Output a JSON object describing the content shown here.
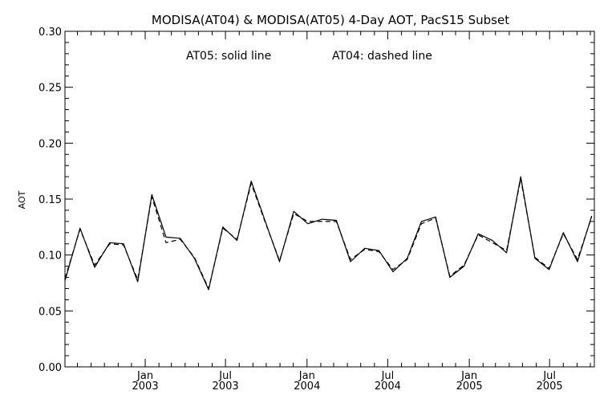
{
  "chart_data": {
    "type": "line",
    "title": "MODISA(AT04) & MODISA(AT05) 4-Day AOT, PacS15 Subset",
    "annotation": {
      "solid": "AT05: solid line",
      "dashed": "AT04: dashed line"
    },
    "xlabel": "",
    "ylabel": "AOT",
    "ylim": [
      0.0,
      0.3
    ],
    "yticks": [
      "0.00",
      "0.05",
      "0.10",
      "0.15",
      "0.20",
      "0.25",
      "0.30"
    ],
    "xlim": [
      "2002-07-04",
      "2005-10-10"
    ],
    "xticks": [
      {
        "date": "2003-01-01",
        "month": "Jan",
        "year": "2003"
      },
      {
        "date": "2003-07-01",
        "month": "Jul",
        "year": "2003"
      },
      {
        "date": "2004-01-01",
        "month": "Jan",
        "year": "2004"
      },
      {
        "date": "2004-07-01",
        "month": "Jul",
        "year": "2004"
      },
      {
        "date": "2005-01-01",
        "month": "Jan",
        "year": "2005"
      },
      {
        "date": "2005-07-01",
        "month": "Jul",
        "year": "2005"
      }
    ],
    "grid": false,
    "series": [
      {
        "name": "AT05",
        "style": "solid",
        "color": "#000000",
        "x": [
          "2002-07-04",
          "2002-08-07",
          "2002-09-09",
          "2002-10-13",
          "2002-11-13",
          "2002-12-15",
          "2003-01-16",
          "2003-02-17",
          "2003-03-21",
          "2003-04-22",
          "2003-05-24",
          "2003-06-25",
          "2003-07-27",
          "2003-08-28",
          "2003-09-29",
          "2003-10-31",
          "2003-12-02",
          "2004-01-03",
          "2004-02-04",
          "2004-03-07",
          "2004-04-08",
          "2004-05-10",
          "2004-06-11",
          "2004-07-13",
          "2004-08-14",
          "2004-09-15",
          "2004-10-17",
          "2004-11-18",
          "2004-12-20",
          "2005-01-21",
          "2005-02-22",
          "2005-03-26",
          "2005-04-27",
          "2005-05-29",
          "2005-06-30",
          "2005-08-01",
          "2005-09-02",
          "2005-10-04"
        ],
        "values": [
          0.077,
          0.124,
          0.089,
          0.111,
          0.11,
          0.076,
          0.154,
          0.116,
          0.115,
          0.097,
          0.069,
          0.125,
          0.113,
          0.166,
          0.13,
          0.094,
          0.139,
          0.128,
          0.132,
          0.131,
          0.094,
          0.106,
          0.104,
          0.085,
          0.097,
          0.13,
          0.134,
          0.08,
          0.09,
          0.119,
          0.113,
          0.102,
          0.17,
          0.097,
          0.087,
          0.12,
          0.094,
          0.135
        ]
      },
      {
        "name": "AT04",
        "style": "dashed",
        "color": "#000000",
        "x": [
          "2002-07-04",
          "2002-08-07",
          "2002-09-09",
          "2002-10-13",
          "2002-11-13",
          "2002-12-15",
          "2003-01-16",
          "2003-02-17",
          "2003-03-21",
          "2003-04-22",
          "2003-05-24",
          "2003-06-25",
          "2003-07-27",
          "2003-08-28",
          "2003-09-29",
          "2003-10-31",
          "2003-12-02",
          "2004-01-03",
          "2004-02-04",
          "2004-03-07",
          "2004-04-08",
          "2004-05-10",
          "2004-06-11",
          "2004-07-13",
          "2004-08-14",
          "2004-09-15",
          "2004-10-17",
          "2004-11-18",
          "2004-12-20",
          "2005-01-21",
          "2005-02-22",
          "2005-03-26",
          "2005-04-27",
          "2005-05-29",
          "2005-06-30",
          "2005-08-01",
          "2005-09-02",
          "2005-10-04"
        ],
        "values": [
          0.079,
          0.123,
          0.091,
          0.11,
          0.109,
          0.078,
          0.152,
          0.111,
          0.114,
          0.098,
          0.07,
          0.124,
          0.114,
          0.164,
          0.129,
          0.095,
          0.137,
          0.13,
          0.13,
          0.13,
          0.096,
          0.105,
          0.103,
          0.087,
          0.096,
          0.128,
          0.133,
          0.081,
          0.091,
          0.118,
          0.111,
          0.104,
          0.168,
          0.098,
          0.088,
          0.119,
          0.096,
          0.134
        ]
      }
    ]
  }
}
